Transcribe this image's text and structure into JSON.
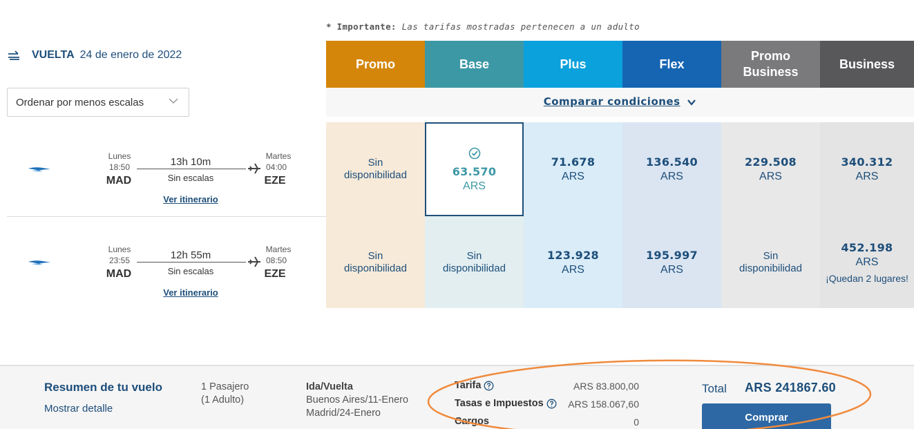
{
  "note": {
    "bold": "* Importante:",
    "italic": "Las tarifas mostradas pertenecen a un adulto"
  },
  "header": {
    "icon": "return-flight-icon",
    "label": "VUELTA",
    "date": "24 de enero de 2022"
  },
  "sort": {
    "value": "Ordenar por menos escalas"
  },
  "fares": [
    {
      "name": "Promo",
      "color": "#d4860a",
      "bg": "#f7ead9"
    },
    {
      "name": "Base",
      "color": "#3d98a6",
      "bg": "#e2eef0"
    },
    {
      "name": "Plus",
      "color": "#0aa1dc",
      "bg": "#d9ecf7"
    },
    {
      "name": "Flex",
      "color": "#1565b3",
      "bg": "#dbe5f2"
    },
    {
      "name": "Promo Business",
      "color": "#7a7a7c",
      "bg": "#e8e8e9"
    },
    {
      "name": "Business",
      "color": "#58585a",
      "bg": "#e4e4e4"
    }
  ],
  "compare": {
    "label": "Comparar condiciones"
  },
  "flights": [
    {
      "dep_day": "Lunes",
      "dep_time": "18:50",
      "dep_code": "MAD",
      "duration": "13h 10m",
      "stops": "Sin escalas",
      "arr_day": "Martes",
      "arr_time": "04:00",
      "arr_code": "EZE",
      "itinerary": "Ver itinerario",
      "cells": [
        {
          "na": "Sin\ndisponibilidad"
        },
        {
          "price": "63.570",
          "cur": "ARS",
          "selected": true
        },
        {
          "price": "71.678",
          "cur": "ARS"
        },
        {
          "price": "136.540",
          "cur": "ARS"
        },
        {
          "price": "229.508",
          "cur": "ARS"
        },
        {
          "price": "340.312",
          "cur": "ARS"
        }
      ]
    },
    {
      "dep_day": "Lunes",
      "dep_time": "23:55",
      "dep_code": "MAD",
      "duration": "12h 55m",
      "stops": "Sin escalas",
      "arr_day": "Martes",
      "arr_time": "08:50",
      "arr_code": "EZE",
      "itinerary": "Ver itinerario",
      "cells": [
        {
          "na": "Sin\ndisponibilidad"
        },
        {
          "na": "Sin\ndisponibilidad"
        },
        {
          "price": "123.928",
          "cur": "ARS"
        },
        {
          "price": "195.997",
          "cur": "ARS"
        },
        {
          "na": "Sin\ndisponibilidad"
        },
        {
          "price": "452.198",
          "cur": "ARS",
          "left": "¡Quedan 2 lugares!"
        }
      ]
    }
  ],
  "summary": {
    "title": "Resumen de tu vuelo",
    "detail": "Mostrar detalle",
    "pax_1": "1 Pasajero",
    "pax_2": "(1 Adulto)",
    "trip": "Ida/Vuelta",
    "leg_1": "Buenos Aires/11-Enero",
    "leg_2": "Madrid/24-Enero",
    "tarifa_label": "Tarifa",
    "tarifa_value": "ARS 83.800,00",
    "tasas_label": "Tasas e Impuestos",
    "tasas_value": "ARS 158.067,60",
    "cargos_label": "Cargos",
    "cargos_value": "0",
    "total_label": "Total",
    "total_value": "ARS 241867.60",
    "buy_label": "Comprar"
  },
  "colors": {
    "brand": "#1d4e7a",
    "button": "#2d68a4",
    "highlight_oval": "#f08a3c"
  }
}
